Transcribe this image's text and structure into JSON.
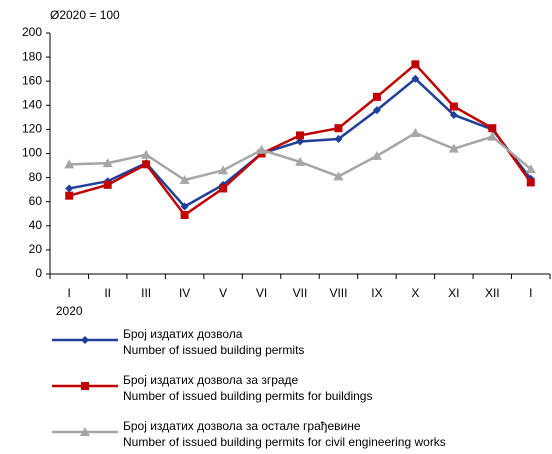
{
  "chart_data": {
    "type": "line",
    "subtitle": "Ø2020 = 100",
    "categories": [
      "I",
      "II",
      "III",
      "IV",
      "V",
      "VI",
      "VII",
      "VIII",
      "IX",
      "X",
      "XI",
      "XII",
      "I"
    ],
    "year_label": "2020",
    "ylim": [
      0,
      200
    ],
    "yticks": [
      0,
      20,
      40,
      60,
      80,
      100,
      120,
      140,
      160,
      180,
      200
    ],
    "series": [
      {
        "name": "Број издатих дозвола",
        "name_en": "Number  of  issued building permits",
        "color": "#1f3f99",
        "marker": "diamond",
        "values": [
          71,
          77,
          92,
          56,
          74,
          100,
          110,
          112,
          136,
          162,
          132,
          120,
          79
        ]
      },
      {
        "name": "Број издатих дозвола за зграде",
        "name_en": "Number  of  issued building permits for buildings",
        "color": "#c00000",
        "marker": "square",
        "values": [
          65,
          74,
          91,
          49,
          71,
          100,
          115,
          121,
          147,
          174,
          139,
          121,
          76
        ]
      },
      {
        "name": "Број издатих дозвола за остале грађевине",
        "name_en": "Number  of  issued building permits for civil engineering works",
        "color": "#a6a6a6",
        "marker": "triangle",
        "values": [
          91,
          92,
          99,
          78,
          86,
          103,
          93,
          81,
          98,
          117,
          104,
          114,
          87
        ]
      }
    ]
  }
}
